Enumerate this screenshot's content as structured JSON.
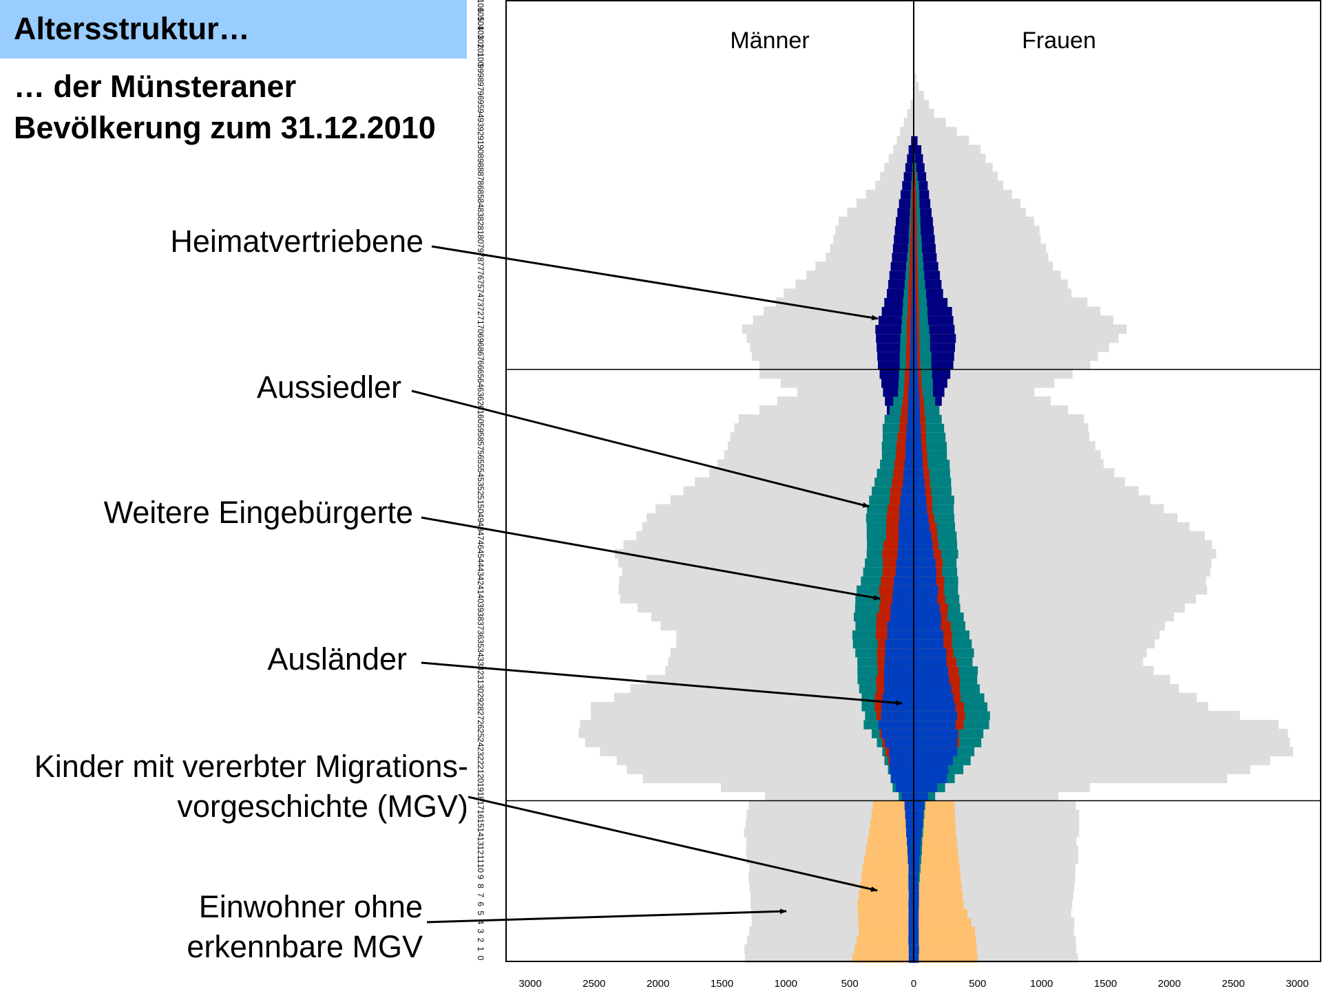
{
  "title": "Altersstruktur…",
  "subtitle_lines": [
    "… der Münsteraner",
    "Bevölkerung zum 31.12.2010"
  ],
  "annotations": {
    "heimat": "Heimatvertriebene",
    "aussiedler": "Aussiedler",
    "eingebuergerte": "Weitere Eingebürgerte",
    "auslaender": "Ausländer",
    "kinder_1": "Kinder mit vererbter Migrations-",
    "kinder_2": "vorgeschichte (MGV)",
    "einwohner_1": "Einwohner ohne",
    "einwohner_2": "erkennbare MGV"
  },
  "colors": {
    "total": "#dddddd",
    "heimatvertriebene": "#000080",
    "aussiedler": "#008080",
    "eingebuergerte": "#c02000",
    "auslaender": "#0040c0",
    "kinder_mgv": "#ffc070"
  },
  "chart_data": {
    "type": "population-pyramid",
    "left_label": "Männer",
    "right_label": "Frauen",
    "age_ticks": [
      0,
      1,
      2,
      3,
      4,
      5,
      6,
      7,
      8,
      9,
      10,
      11,
      12,
      13,
      14,
      15,
      16,
      17,
      18,
      19,
      20,
      21,
      22,
      23,
      24,
      25,
      26,
      27,
      28,
      29,
      30,
      31,
      32,
      33,
      34,
      35,
      36,
      37,
      38,
      39,
      40,
      41,
      42,
      43,
      44,
      45,
      46,
      47,
      48,
      49,
      50,
      51,
      52,
      53,
      54,
      55,
      56,
      57,
      58,
      59,
      60,
      61,
      62,
      63,
      64,
      65,
      66,
      67,
      68,
      69,
      70,
      71,
      72,
      73,
      74,
      75,
      76,
      77,
      78,
      79,
      80,
      81,
      82,
      83,
      84,
      85,
      86,
      87,
      88,
      89,
      90,
      91,
      92,
      93,
      94,
      95,
      96,
      97,
      98,
      99,
      100,
      101,
      102,
      103,
      104,
      105,
      106
    ],
    "x_ticks": [
      3000,
      2500,
      2000,
      1500,
      1000,
      500,
      0,
      500,
      1000,
      1500,
      2000,
      2500,
      3000
    ],
    "xlim": [
      -3000,
      3000
    ],
    "ylim": [
      0,
      106
    ],
    "reference_ages": [
      18,
      66
    ],
    "key_points": {
      "total_m": [
        [
          0,
          1330
        ],
        [
          5,
          1260
        ],
        [
          10,
          1300
        ],
        [
          15,
          1320
        ],
        [
          17,
          1300
        ],
        [
          18,
          1150
        ],
        [
          19,
          1500
        ],
        [
          20,
          2100
        ],
        [
          22,
          2350
        ],
        [
          25,
          2640
        ],
        [
          28,
          2500
        ],
        [
          32,
          1950
        ],
        [
          36,
          1850
        ],
        [
          40,
          2280
        ],
        [
          45,
          2320
        ],
        [
          50,
          2000
        ],
        [
          55,
          1520
        ],
        [
          60,
          1370
        ],
        [
          63,
          900
        ],
        [
          65,
          1200
        ],
        [
          66,
          1220
        ],
        [
          70,
          1340
        ],
        [
          74,
          1010
        ],
        [
          78,
          680
        ],
        [
          82,
          590
        ],
        [
          86,
          300
        ],
        [
          90,
          160
        ],
        [
          94,
          50
        ],
        [
          96,
          0
        ]
      ],
      "total_f": [
        [
          0,
          1300
        ],
        [
          5,
          1230
        ],
        [
          10,
          1270
        ],
        [
          15,
          1290
        ],
        [
          17,
          1270
        ],
        [
          18,
          1120
        ],
        [
          19,
          1380
        ],
        [
          20,
          2450
        ],
        [
          23,
          3000
        ],
        [
          26,
          2850
        ],
        [
          28,
          2300
        ],
        [
          33,
          1800
        ],
        [
          37,
          1950
        ],
        [
          41,
          2300
        ],
        [
          46,
          2350
        ],
        [
          50,
          1950
        ],
        [
          55,
          1480
        ],
        [
          60,
          1320
        ],
        [
          63,
          950
        ],
        [
          66,
          1380
        ],
        [
          70,
          1660
        ],
        [
          74,
          1240
        ],
        [
          78,
          1050
        ],
        [
          82,
          950
        ],
        [
          86,
          700
        ],
        [
          90,
          520
        ],
        [
          94,
          160
        ],
        [
          97,
          40
        ],
        [
          99,
          0
        ]
      ],
      "heimat_m": [
        [
          61,
          210
        ],
        [
          63,
          240
        ],
        [
          66,
          280
        ],
        [
          70,
          300
        ],
        [
          72,
          250
        ],
        [
          74,
          210
        ],
        [
          78,
          170
        ],
        [
          82,
          140
        ],
        [
          86,
          90
        ],
        [
          90,
          40
        ],
        [
          92,
          0
        ]
      ],
      "heimat_f": [
        [
          61,
          200
        ],
        [
          63,
          240
        ],
        [
          66,
          310
        ],
        [
          69,
          330
        ],
        [
          72,
          300
        ],
        [
          74,
          230
        ],
        [
          78,
          180
        ],
        [
          82,
          150
        ],
        [
          86,
          110
        ],
        [
          90,
          60
        ],
        [
          92,
          0
        ]
      ],
      "auss_m": [
        [
          0,
          0
        ],
        [
          17,
          70
        ],
        [
          18,
          120
        ],
        [
          19,
          170
        ],
        [
          21,
          200
        ],
        [
          23,
          250
        ],
        [
          26,
          380
        ],
        [
          30,
          420
        ],
        [
          35,
          470
        ],
        [
          40,
          460
        ],
        [
          45,
          370
        ],
        [
          50,
          370
        ],
        [
          55,
          260
        ],
        [
          60,
          230
        ],
        [
          63,
          120
        ],
        [
          66,
          110
        ],
        [
          70,
          100
        ],
        [
          75,
          70
        ],
        [
          80,
          40
        ],
        [
          86,
          20
        ],
        [
          90,
          0
        ]
      ],
      "auss_f": [
        [
          0,
          0
        ],
        [
          17,
          90
        ],
        [
          18,
          170
        ],
        [
          19,
          240
        ],
        [
          21,
          390
        ],
        [
          24,
          520
        ],
        [
          27,
          600
        ],
        [
          31,
          500
        ],
        [
          35,
          450
        ],
        [
          40,
          350
        ],
        [
          45,
          340
        ],
        [
          50,
          320
        ],
        [
          55,
          280
        ],
        [
          60,
          220
        ],
        [
          63,
          150
        ],
        [
          66,
          140
        ],
        [
          70,
          120
        ],
        [
          75,
          90
        ],
        [
          80,
          60
        ],
        [
          86,
          40
        ],
        [
          90,
          0
        ]
      ],
      "ein_m": [
        [
          0,
          0
        ],
        [
          17,
          50
        ],
        [
          18,
          80
        ],
        [
          20,
          150
        ],
        [
          23,
          220
        ],
        [
          27,
          300
        ],
        [
          32,
          280
        ],
        [
          36,
          290
        ],
        [
          40,
          270
        ],
        [
          45,
          240
        ],
        [
          50,
          200
        ],
        [
          55,
          150
        ],
        [
          60,
          110
        ],
        [
          63,
          80
        ],
        [
          66,
          60
        ],
        [
          72,
          50
        ],
        [
          78,
          30
        ],
        [
          85,
          15
        ],
        [
          90,
          0
        ]
      ],
      "ein_f": [
        [
          0,
          0
        ],
        [
          17,
          60
        ],
        [
          18,
          110
        ],
        [
          20,
          220
        ],
        [
          23,
          340
        ],
        [
          27,
          390
        ],
        [
          32,
          350
        ],
        [
          36,
          290
        ],
        [
          40,
          250
        ],
        [
          45,
          210
        ],
        [
          50,
          150
        ],
        [
          55,
          110
        ],
        [
          60,
          90
        ],
        [
          63,
          70
        ],
        [
          66,
          50
        ],
        [
          72,
          40
        ],
        [
          78,
          30
        ],
        [
          85,
          20
        ],
        [
          90,
          0
        ]
      ],
      "ausl_m": [
        [
          0,
          40
        ],
        [
          10,
          40
        ],
        [
          17,
          70
        ],
        [
          18,
          90
        ],
        [
          20,
          180
        ],
        [
          23,
          200
        ],
        [
          26,
          270
        ],
        [
          30,
          240
        ],
        [
          35,
          220
        ],
        [
          40,
          170
        ],
        [
          45,
          130
        ],
        [
          50,
          110
        ],
        [
          55,
          70
        ],
        [
          60,
          50
        ],
        [
          66,
          30
        ],
        [
          75,
          15
        ],
        [
          85,
          5
        ],
        [
          90,
          0
        ]
      ],
      "ausl_f": [
        [
          0,
          40
        ],
        [
          10,
          40
        ],
        [
          17,
          80
        ],
        [
          18,
          110
        ],
        [
          20,
          250
        ],
        [
          23,
          330
        ],
        [
          26,
          340
        ],
        [
          30,
          290
        ],
        [
          35,
          240
        ],
        [
          40,
          190
        ],
        [
          45,
          160
        ],
        [
          50,
          100
        ],
        [
          55,
          70
        ],
        [
          60,
          50
        ],
        [
          66,
          30
        ],
        [
          75,
          15
        ],
        [
          85,
          5
        ],
        [
          90,
          0
        ]
      ],
      "kinder_m": [
        [
          0,
          480
        ],
        [
          3,
          430
        ],
        [
          6,
          440
        ],
        [
          10,
          400
        ],
        [
          14,
          350
        ],
        [
          17,
          320
        ]
      ],
      "kinder_f": [
        [
          0,
          500
        ],
        [
          3,
          480
        ],
        [
          6,
          390
        ],
        [
          10,
          360
        ],
        [
          14,
          330
        ],
        [
          17,
          320
        ]
      ]
    }
  }
}
